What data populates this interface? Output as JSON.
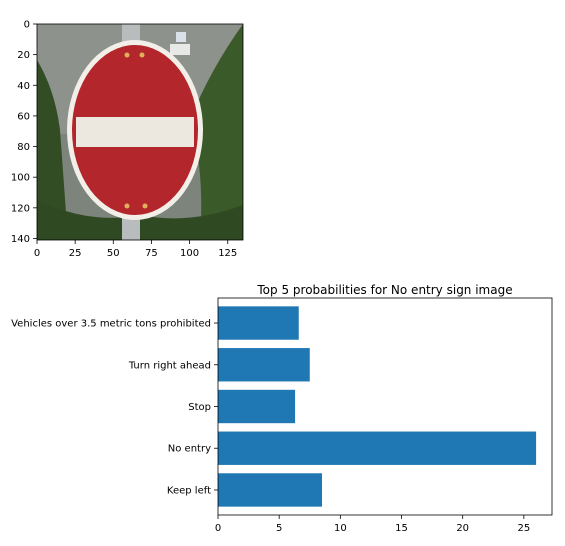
{
  "chart_data": [
    {
      "type": "image",
      "xlim": [
        0,
        135
      ],
      "ylim": [
        141,
        0
      ],
      "xticks": [
        0,
        25,
        50,
        75,
        100,
        125
      ],
      "yticks": [
        0,
        20,
        40,
        60,
        80,
        100,
        120,
        140
      ],
      "content": {
        "sign": "no-entry-sign-icon",
        "background": [
          "#8a8f8a",
          "#2f4a24",
          "#4d6b33"
        ],
        "sign_red": "#b3262b",
        "sign_bar": "#ece8df",
        "sign_rim": "#f2efe9"
      }
    },
    {
      "type": "bar",
      "orientation": "horizontal",
      "title": "Top 5 probabilities for No entry sign image",
      "categories": [
        "Keep left",
        "No entry",
        "Stop",
        "Turn right ahead",
        "Vehicles over 3.5 metric tons prohibited"
      ],
      "values": [
        8.5,
        26.0,
        6.3,
        7.5,
        6.6
      ],
      "xlim": [
        0,
        27.3
      ],
      "xticks": [
        0,
        5,
        10,
        15,
        20,
        25
      ],
      "bar_color": "#1f77b4"
    }
  ]
}
